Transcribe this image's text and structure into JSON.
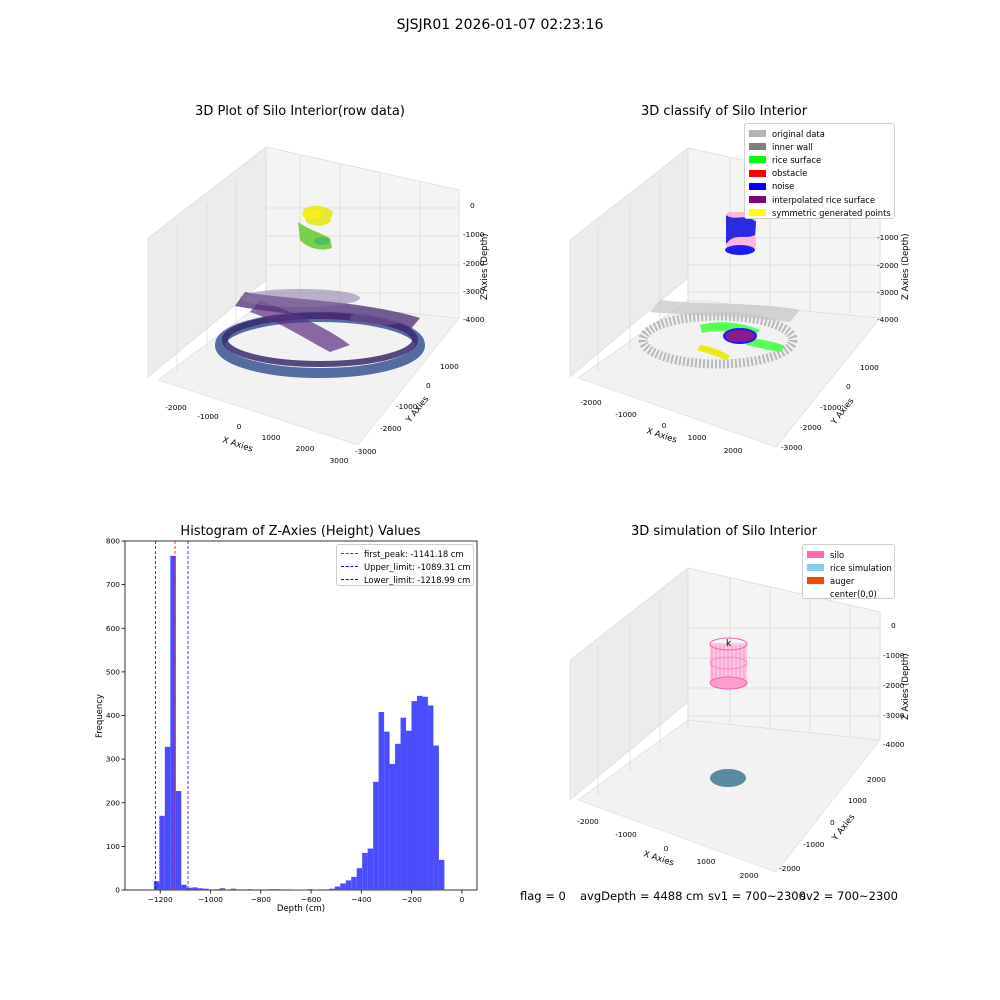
{
  "figure": {
    "suptitle": "SJSJR01 2026-01-07 02:23:16",
    "status": {
      "flag": "flag = 0",
      "avg_depth": "avgDepth = 4488 cm",
      "sv1": "sv1 = 700~2300",
      "sv2": "sv2 = 700~2300"
    }
  },
  "panels": {
    "raw": {
      "title": "3D Plot of Silo Interior(row data)",
      "xlabel": "X Axies",
      "ylabel": "Y Axies",
      "zlabel": "Z Axies (Depth)",
      "xticks": [
        "-2000",
        "-1000",
        "0",
        "1000",
        "2000",
        "3000"
      ],
      "yticks": [
        "1000",
        "0",
        "-1000",
        "-2000",
        "-3000"
      ],
      "zticks": [
        "0",
        "-1000",
        "-2000",
        "-3000",
        "-4000"
      ]
    },
    "classify": {
      "title": "3D classify of Silo Interior",
      "xlabel": "X Axies",
      "ylabel": "Y Axies",
      "zlabel": "Z Axies (Depth)",
      "xticks": [
        "-2000",
        "-1000",
        "0",
        "1000",
        "2000"
      ],
      "yticks": [
        "1000",
        "0",
        "-1000",
        "-2000",
        "-3000"
      ],
      "zticks": [
        "-1000",
        "-2000",
        "-3000",
        "-4000"
      ],
      "legend": [
        {
          "label": "original data",
          "color": "#b3b3b3"
        },
        {
          "label": "inner wall",
          "color": "#808080"
        },
        {
          "label": "rice surface",
          "color": "#00ff00"
        },
        {
          "label": "obstacle",
          "color": "#ff0000"
        },
        {
          "label": "noise",
          "color": "#0000ff"
        },
        {
          "label": "interpolated rice surface",
          "color": "#800080"
        },
        {
          "label": "symmetric generated points",
          "color": "#ffff00"
        }
      ]
    },
    "simulation": {
      "title": "3D simulation of Silo Interior",
      "xlabel": "X Axies",
      "ylabel": "Y Axies",
      "zlabel": "Z Axies (Depth)",
      "xticks": [
        "-2000",
        "-1000",
        "0",
        "1000",
        "2000"
      ],
      "yticks": [
        "2000",
        "1000",
        "0",
        "-1000",
        "-2000"
      ],
      "zticks": [
        "0",
        "-1000",
        "-2000",
        "-3000",
        "-4000"
      ],
      "legend": [
        {
          "label": "silo",
          "color": "#ff69b4"
        },
        {
          "label": "rice simulation",
          "color": "#87ceeb"
        },
        {
          "label": "auger",
          "color": "#ff4500"
        },
        {
          "label": "center(0,0)",
          "color": ""
        }
      ]
    }
  },
  "chart_data": {
    "type": "bar",
    "title": "Histogram of Z-Axies (Height) Values",
    "xlabel": "Depth (cm)",
    "ylabel": "Frequency",
    "xlim": [
      -1340,
      60
    ],
    "ylim": [
      0,
      800
    ],
    "xticks": [
      -1200,
      -1000,
      -800,
      -600,
      -400,
      -200,
      0
    ],
    "yticks": [
      0,
      100,
      200,
      300,
      400,
      500,
      600,
      700,
      800
    ],
    "bar_color": "#4c4cff",
    "bins": [
      {
        "x0": -1225.1,
        "x1": -1203.3,
        "y": 20
      },
      {
        "x0": -1203.3,
        "x1": -1181.5,
        "y": 170
      },
      {
        "x0": -1181.5,
        "x1": -1159.7,
        "y": 328
      },
      {
        "x0": -1159.7,
        "x1": -1137.9,
        "y": 766
      },
      {
        "x0": -1137.9,
        "x1": -1116.1,
        "y": 227
      },
      {
        "x0": -1116.1,
        "x1": -1094.3,
        "y": 12
      },
      {
        "x0": -1094.3,
        "x1": -1072.5,
        "y": 5
      },
      {
        "x0": -1072.5,
        "x1": -1050.7,
        "y": 6
      },
      {
        "x0": -1050.7,
        "x1": -1028.9,
        "y": 4
      },
      {
        "x0": -1028.9,
        "x1": -1007.1,
        "y": 3
      },
      {
        "x0": -985.3,
        "x1": -963.5,
        "y": 2
      },
      {
        "x0": -963.5,
        "x1": -941.7,
        "y": 4
      },
      {
        "x0": -919.9,
        "x1": -898.1,
        "y": 3
      },
      {
        "x0": -854.5,
        "x1": -832.7,
        "y": 2
      },
      {
        "x0": -767.3,
        "x1": -745.5,
        "y": 2
      },
      {
        "x0": -745.5,
        "x1": -723.7,
        "y": 2
      },
      {
        "x0": -680.1,
        "x1": -658.3,
        "y": 1
      },
      {
        "x0": -658.3,
        "x1": -636.5,
        "y": 1
      },
      {
        "x0": -636.5,
        "x1": -614.7,
        "y": 1
      },
      {
        "x0": -614.7,
        "x1": -592.9,
        "y": 2
      },
      {
        "x0": -592.9,
        "x1": -571.1,
        "y": 1
      },
      {
        "x0": -527.5,
        "x1": -505.7,
        "y": 3
      },
      {
        "x0": -505.7,
        "x1": -483.9,
        "y": 8
      },
      {
        "x0": -483.9,
        "x1": -462.1,
        "y": 15
      },
      {
        "x0": -462.1,
        "x1": -440.3,
        "y": 22
      },
      {
        "x0": -440.3,
        "x1": -418.5,
        "y": 30
      },
      {
        "x0": -418.5,
        "x1": -396.7,
        "y": 50
      },
      {
        "x0": -396.7,
        "x1": -374.9,
        "y": 85
      },
      {
        "x0": -374.9,
        "x1": -353.1,
        "y": 95
      },
      {
        "x0": -353.1,
        "x1": -331.3,
        "y": 248
      },
      {
        "x0": -331.3,
        "x1": -309.5,
        "y": 408
      },
      {
        "x0": -309.5,
        "x1": -287.7,
        "y": 363
      },
      {
        "x0": -287.7,
        "x1": -265.9,
        "y": 289
      },
      {
        "x0": -265.9,
        "x1": -244.1,
        "y": 335
      },
      {
        "x0": -244.1,
        "x1": -222.3,
        "y": 395
      },
      {
        "x0": -222.3,
        "x1": -200.5,
        "y": 365
      },
      {
        "x0": -200.5,
        "x1": -178.7,
        "y": 433
      },
      {
        "x0": -178.7,
        "x1": -156.9,
        "y": 445
      },
      {
        "x0": -156.9,
        "x1": -135.1,
        "y": 443
      },
      {
        "x0": -135.1,
        "x1": -113.3,
        "y": 423
      },
      {
        "x0": -113.3,
        "x1": -91.5,
        "y": 331
      },
      {
        "x0": -91.5,
        "x1": -69.7,
        "y": 69
      }
    ],
    "vlines": [
      {
        "label": "first_peak: -1141.18 cm",
        "x": -1141.18,
        "color": "#ff0000"
      },
      {
        "label": "Upper_limit: -1089.31 cm",
        "x": -1089.31,
        "color": "#0000ff"
      },
      {
        "label": "Lower_limit: -1218.99 cm",
        "x": -1218.99,
        "color": "#0000ff"
      }
    ]
  }
}
